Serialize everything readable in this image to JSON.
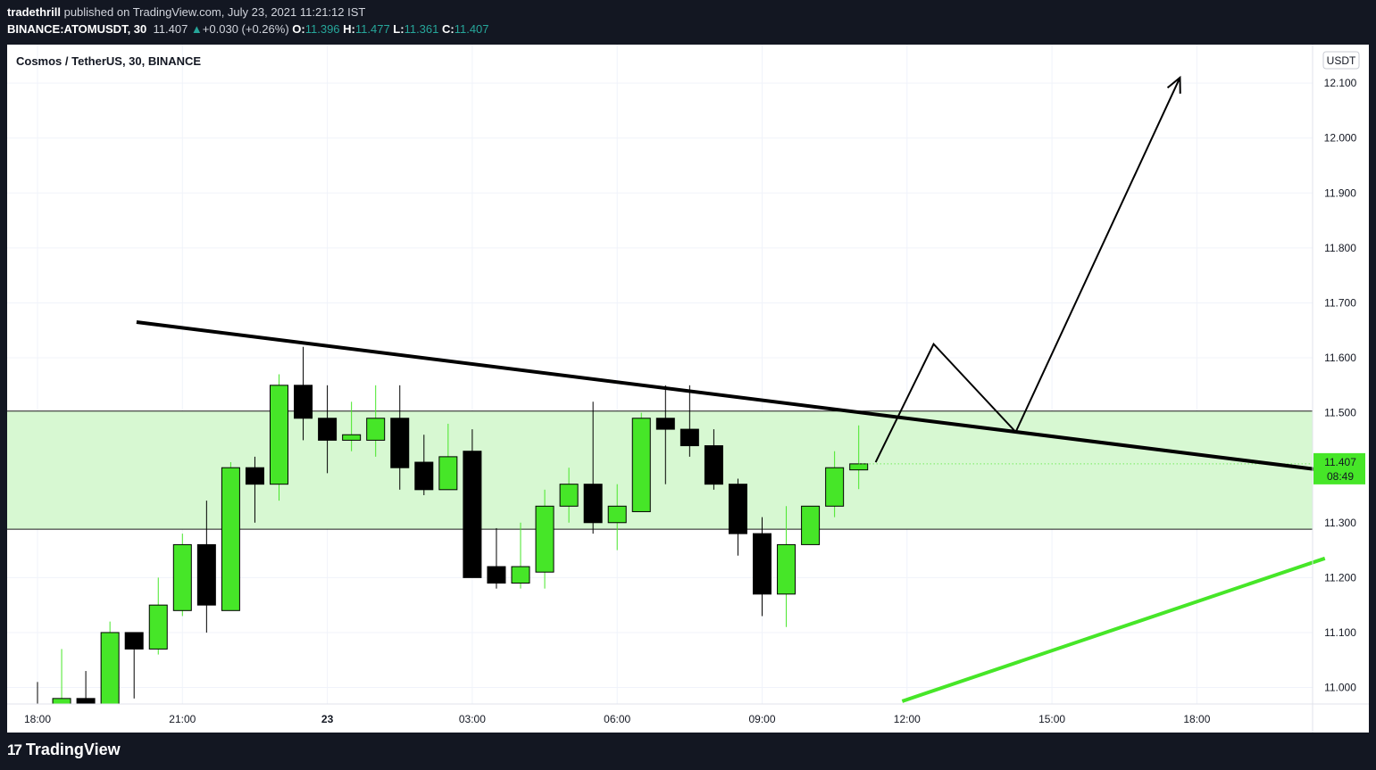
{
  "header": {
    "user": "tradethrill",
    "published_text": "published on TradingView.com, July 23, 2021 11:21:12 IST",
    "symbol": "BINANCE:ATOMUSDT, 30",
    "last": "11.407",
    "change_arrow": "▲",
    "change": "+0.030 (+0.26%)",
    "o_label": "O:",
    "o": "11.396",
    "h_label": "H:",
    "h": "11.477",
    "l_label": "L:",
    "l": "11.361",
    "c_label": "C:",
    "c": "11.407"
  },
  "footer": {
    "brand": "TradingView",
    "logo_icon": "tradingview-logo-icon"
  },
  "chart_data": {
    "type": "candlestick",
    "title": "Cosmos / TetherUS, 30, BINANCE",
    "currency": "USDT",
    "ylim": [
      10.97,
      12.17
    ],
    "y_ticks": [
      "12.100",
      "12.000",
      "11.900",
      "11.800",
      "11.700",
      "11.600",
      "11.500",
      "11.400",
      "11.300",
      "11.200",
      "11.100",
      "11.000"
    ],
    "x_ticks": [
      {
        "label": "18:00",
        "t": 0,
        "bold": false
      },
      {
        "label": "21:00",
        "t": 6,
        "bold": false
      },
      {
        "label": "23",
        "t": 12,
        "bold": true
      },
      {
        "label": "03:00",
        "t": 18,
        "bold": false
      },
      {
        "label": "06:00",
        "t": 24,
        "bold": false
      },
      {
        "label": "09:00",
        "t": 30,
        "bold": false
      },
      {
        "label": "12:00",
        "t": 36,
        "bold": false
      },
      {
        "label": "15:00",
        "t": 42,
        "bold": false
      },
      {
        "label": "18:00",
        "t": 48,
        "bold": false
      }
    ],
    "candles": [
      {
        "t": 0,
        "o": 10.96,
        "h": 11.01,
        "l": 10.94,
        "c": 10.95
      },
      {
        "t": 1,
        "o": 10.96,
        "h": 11.07,
        "l": 10.95,
        "c": 10.98
      },
      {
        "t": 2,
        "o": 10.98,
        "h": 11.03,
        "l": 10.95,
        "c": 10.97
      },
      {
        "t": 3,
        "o": 10.97,
        "h": 11.12,
        "l": 10.96,
        "c": 11.1
      },
      {
        "t": 4,
        "o": 11.1,
        "h": 11.1,
        "l": 10.98,
        "c": 11.07
      },
      {
        "t": 5,
        "o": 11.07,
        "h": 11.2,
        "l": 11.06,
        "c": 11.15
      },
      {
        "t": 6,
        "o": 11.14,
        "h": 11.28,
        "l": 11.13,
        "c": 11.26
      },
      {
        "t": 7,
        "o": 11.26,
        "h": 11.34,
        "l": 11.1,
        "c": 11.15
      },
      {
        "t": 8,
        "o": 11.14,
        "h": 11.41,
        "l": 11.14,
        "c": 11.4
      },
      {
        "t": 9,
        "o": 11.4,
        "h": 11.42,
        "l": 11.3,
        "c": 11.37
      },
      {
        "t": 10,
        "o": 11.37,
        "h": 11.57,
        "l": 11.34,
        "c": 11.55
      },
      {
        "t": 11,
        "o": 11.55,
        "h": 11.62,
        "l": 11.45,
        "c": 11.49
      },
      {
        "t": 12,
        "o": 11.49,
        "h": 11.55,
        "l": 11.39,
        "c": 11.45
      },
      {
        "t": 13,
        "o": 11.45,
        "h": 11.52,
        "l": 11.43,
        "c": 11.46
      },
      {
        "t": 14,
        "o": 11.45,
        "h": 11.55,
        "l": 11.42,
        "c": 11.49
      },
      {
        "t": 15,
        "o": 11.49,
        "h": 11.55,
        "l": 11.36,
        "c": 11.4
      },
      {
        "t": 16,
        "o": 11.41,
        "h": 11.46,
        "l": 11.35,
        "c": 11.36
      },
      {
        "t": 17,
        "o": 11.36,
        "h": 11.48,
        "l": 11.36,
        "c": 11.42
      },
      {
        "t": 18,
        "o": 11.43,
        "h": 11.47,
        "l": 11.2,
        "c": 11.2
      },
      {
        "t": 19,
        "o": 11.22,
        "h": 11.29,
        "l": 11.18,
        "c": 11.19
      },
      {
        "t": 20,
        "o": 11.19,
        "h": 11.3,
        "l": 11.18,
        "c": 11.22
      },
      {
        "t": 21,
        "o": 11.21,
        "h": 11.36,
        "l": 11.18,
        "c": 11.33
      },
      {
        "t": 22,
        "o": 11.33,
        "h": 11.4,
        "l": 11.3,
        "c": 11.37
      },
      {
        "t": 23,
        "o": 11.37,
        "h": 11.52,
        "l": 11.28,
        "c": 11.3
      },
      {
        "t": 24,
        "o": 11.3,
        "h": 11.37,
        "l": 11.25,
        "c": 11.33
      },
      {
        "t": 25,
        "o": 11.32,
        "h": 11.5,
        "l": 11.32,
        "c": 11.49
      },
      {
        "t": 26,
        "o": 11.49,
        "h": 11.55,
        "l": 11.37,
        "c": 11.47
      },
      {
        "t": 27,
        "o": 11.47,
        "h": 11.55,
        "l": 11.42,
        "c": 11.44
      },
      {
        "t": 28,
        "o": 11.44,
        "h": 11.47,
        "l": 11.36,
        "c": 11.37
      },
      {
        "t": 29,
        "o": 11.37,
        "h": 11.38,
        "l": 11.24,
        "c": 11.28
      },
      {
        "t": 30,
        "o": 11.28,
        "h": 11.31,
        "l": 11.13,
        "c": 11.17
      },
      {
        "t": 31,
        "o": 11.17,
        "h": 11.33,
        "l": 11.11,
        "c": 11.26
      },
      {
        "t": 32,
        "o": 11.26,
        "h": 11.33,
        "l": 11.26,
        "c": 11.33
      },
      {
        "t": 33,
        "o": 11.33,
        "h": 11.43,
        "l": 11.31,
        "c": 11.4
      },
      {
        "t": 34,
        "o": 11.396,
        "h": 11.477,
        "l": 11.361,
        "c": 11.407
      }
    ],
    "zone": {
      "low": 11.288,
      "high": 11.503
    },
    "resistance_line": {
      "from": {
        "t": 4.1,
        "y": 11.665
      },
      "to": {
        "t": 53.3,
        "y": 11.395
      }
    },
    "support_line": {
      "from": {
        "t": 35.8,
        "y": 10.975
      },
      "to": {
        "t": 53.3,
        "y": 11.235
      }
    },
    "projection_path": [
      {
        "t": 34.7,
        "y": 11.41
      },
      {
        "t": 37.1,
        "y": 11.625
      },
      {
        "t": 40.5,
        "y": 11.465
      },
      {
        "t": 47.3,
        "y": 12.11
      }
    ],
    "last_price": {
      "value": 11.407,
      "label": "11.407",
      "countdown": "08:49"
    },
    "colors": {
      "up": "#46e628",
      "down": "#000000",
      "zone": "#d7f8d2",
      "trendline": "#000000",
      "support": "#46e628",
      "label_bg": "#46e628"
    }
  }
}
